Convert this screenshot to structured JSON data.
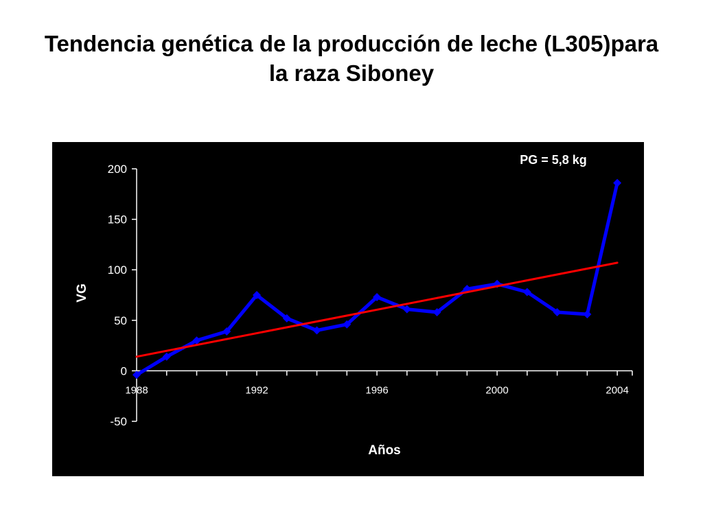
{
  "slide": {
    "title": "Tendencia genética de la producción de leche (L305)para la raza Siboney"
  },
  "chart_data": {
    "type": "line",
    "title": "",
    "xlabel": "Años",
    "ylabel": "VG",
    "annotation": "PG = 5,8 kg",
    "xlim": [
      1988,
      2004.5
    ],
    "ylim": [
      -50,
      200
    ],
    "x_ticks": [
      1988,
      1992,
      1996,
      2000,
      2004
    ],
    "y_ticks": [
      -50,
      0,
      50,
      100,
      150,
      200
    ],
    "grid": false,
    "legend": "none",
    "background": "#000000",
    "text_color": "#ffffff",
    "series": [
      {
        "color": "#0000ff",
        "marker": "diamond",
        "x": [
          1988,
          1989,
          1990,
          1991,
          1992,
          1993,
          1994,
          1995,
          1996,
          1997,
          1998,
          1999,
          2000,
          2001,
          2002,
          2003,
          2004
        ],
        "values": [
          -4,
          14,
          30,
          39,
          75,
          52,
          40,
          46,
          73,
          61,
          58,
          81,
          86,
          78,
          58,
          56,
          186
        ]
      },
      {
        "color": "#ff0000",
        "marker": "none",
        "trend": "linear",
        "x": [
          1988,
          2004
        ],
        "values": [
          14,
          107
        ]
      }
    ]
  }
}
